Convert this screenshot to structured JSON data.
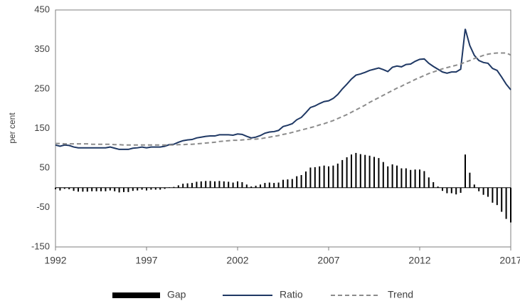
{
  "chart_data": {
    "type": "combo",
    "y_label": "per cent",
    "xlim": [
      1992,
      2017
    ],
    "xticks": [
      1992,
      1997,
      2002,
      2007,
      2012,
      2017
    ],
    "ylim": [
      -150,
      450
    ],
    "yticks": [
      -150,
      -50,
      50,
      150,
      250,
      350,
      450
    ],
    "grid": false,
    "legend": "bottom",
    "x": [
      1992,
      1992.25,
      1992.5,
      1992.75,
      1993,
      1993.25,
      1993.5,
      1993.75,
      1994,
      1994.25,
      1994.5,
      1994.75,
      1995,
      1995.25,
      1995.5,
      1995.75,
      1996,
      1996.25,
      1996.5,
      1996.75,
      1997,
      1997.25,
      1997.5,
      1997.75,
      1998,
      1998.25,
      1998.5,
      1998.75,
      1999,
      1999.25,
      1999.5,
      1999.75,
      2000,
      2000.25,
      2000.5,
      2000.75,
      2001,
      2001.25,
      2001.5,
      2001.75,
      2002,
      2002.25,
      2002.5,
      2002.75,
      2003,
      2003.25,
      2003.5,
      2003.75,
      2004,
      2004.25,
      2004.5,
      2004.75,
      2005,
      2005.25,
      2005.5,
      2005.75,
      2006,
      2006.25,
      2006.5,
      2006.75,
      2007,
      2007.25,
      2007.5,
      2007.75,
      2008,
      2008.25,
      2008.5,
      2008.75,
      2009,
      2009.25,
      2009.5,
      2009.75,
      2010,
      2010.25,
      2010.5,
      2010.75,
      2011,
      2011.25,
      2011.5,
      2011.75,
      2012,
      2012.25,
      2012.5,
      2012.75,
      2013,
      2013.25,
      2013.5,
      2013.75,
      2014,
      2014.25,
      2014.5,
      2014.75,
      2015,
      2015.25,
      2015.5,
      2015.75,
      2016,
      2016.25,
      2016.5,
      2016.75,
      2017
    ],
    "series": [
      {
        "name": "Gap",
        "type": "bar",
        "color": "#000000",
        "values": [
          -4,
          -7,
          -3,
          -4,
          -8,
          -10,
          -10,
          -10,
          -9,
          -9,
          -9,
          -9,
          -7,
          -9,
          -12,
          -11,
          -11,
          -8,
          -7,
          -5,
          -7,
          -5,
          -5,
          -5,
          -3,
          1,
          2,
          6,
          10,
          11,
          12,
          15,
          16,
          17,
          17,
          16,
          17,
          16,
          15,
          13,
          16,
          14,
          8,
          3,
          5,
          8,
          12,
          13,
          12,
          13,
          20,
          21,
          22,
          29,
          32,
          41,
          51,
          52,
          54,
          56,
          54,
          56,
          61,
          70,
          77,
          84,
          88,
          85,
          83,
          81,
          78,
          75,
          65,
          54,
          59,
          56,
          49,
          49,
          45,
          46,
          46,
          42,
          26,
          14,
          3,
          -8,
          -14,
          -14,
          -17,
          -13,
          84,
          38,
          8,
          -9,
          -18,
          -23,
          -38,
          -44,
          -61,
          -79,
          -88
        ]
      },
      {
        "name": "Ratio",
        "type": "line",
        "color": "#1f3864",
        "line_style": "solid",
        "values": [
          108,
          105,
          108,
          107,
          103,
          101,
          101,
          101,
          101,
          101,
          101,
          101,
          103,
          100,
          97,
          97,
          97,
          100,
          101,
          103,
          101,
          103,
          103,
          103,
          105,
          109,
          110,
          115,
          119,
          121,
          122,
          126,
          128,
          130,
          131,
          131,
          134,
          134,
          134,
          133,
          136,
          135,
          130,
          126,
          128,
          132,
          138,
          141,
          142,
          145,
          155,
          158,
          162,
          172,
          178,
          190,
          203,
          207,
          213,
          218,
          220,
          226,
          236,
          250,
          262,
          275,
          285,
          288,
          292,
          297,
          300,
          303,
          299,
          294,
          305,
          308,
          306,
          312,
          313,
          320,
          325,
          326,
          315,
          307,
          300,
          293,
          290,
          293,
          293,
          300,
          402,
          360,
          335,
          322,
          317,
          315,
          302,
          297,
          280,
          262,
          248
        ]
      },
      {
        "name": "Trend",
        "type": "line",
        "color": "#8c8c8c",
        "line_style": "dashed",
        "values": [
          112,
          112,
          111,
          111,
          111,
          111,
          111,
          111,
          110,
          110,
          110,
          110,
          110,
          109,
          109,
          108,
          108,
          108,
          108,
          108,
          108,
          108,
          108,
          108,
          108,
          108,
          108,
          109,
          109,
          110,
          110,
          111,
          112,
          113,
          114,
          115,
          117,
          118,
          119,
          120,
          120,
          121,
          122,
          123,
          123,
          124,
          126,
          128,
          130,
          132,
          135,
          137,
          140,
          143,
          146,
          149,
          152,
          155,
          159,
          162,
          166,
          170,
          175,
          180,
          185,
          191,
          197,
          203,
          209,
          216,
          222,
          228,
          234,
          240,
          246,
          252,
          257,
          263,
          268,
          274,
          279,
          284,
          289,
          293,
          297,
          301,
          304,
          307,
          310,
          313,
          318,
          322,
          327,
          331,
          335,
          338,
          340,
          341,
          341,
          341,
          336
        ]
      }
    ]
  }
}
